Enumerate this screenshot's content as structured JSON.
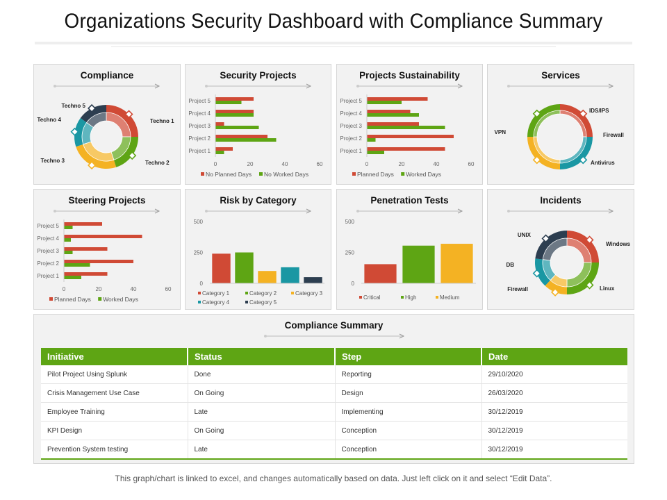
{
  "title": "Organizations Security Dashboard with Compliance Summary",
  "footer": "This graph/chart is linked to excel, and changes automatically based on data. Just left click on it and select “Edit Data”.",
  "colors": {
    "red": "#d04a35",
    "green": "#5ea514",
    "orange": "#f4b223",
    "teal": "#1a97a3",
    "navy": "#2d3e50"
  },
  "panels": {
    "compliance": "Compliance",
    "security_projects": "Security Projects",
    "projects_sustainability": "Projects Sustainability",
    "services": "Services",
    "steering_projects": "Steering Projects",
    "risk_by_category": "Risk by Category",
    "penetration_tests": "Penetration Tests",
    "incidents": "Incidents",
    "compliance_summary": "Compliance Summary"
  },
  "chart_data": [
    {
      "id": "compliance",
      "type": "pie",
      "title": "Compliance",
      "labels": [
        "Techno 1",
        "Techno 2",
        "Techno 3",
        "Techno 4",
        "Techno 5"
      ],
      "values": [
        25,
        20,
        25,
        15,
        15
      ],
      "colors": [
        "#d04a35",
        "#5ea514",
        "#f4b223",
        "#1a97a3",
        "#2d3e50"
      ]
    },
    {
      "id": "security_projects",
      "type": "bar",
      "title": "Security Projects",
      "categories": [
        "Project 1",
        "Project 2",
        "Project 3",
        "Project 4",
        "Project 5"
      ],
      "xticks": [
        "0",
        "20",
        "40",
        "60"
      ],
      "xlim": [
        0,
        60
      ],
      "series": [
        {
          "name": "No Planned Days",
          "color": "#d04a35",
          "values": [
            10,
            30,
            5,
            22,
            22
          ]
        },
        {
          "name": "No Worked Days",
          "color": "#5ea514",
          "values": [
            5,
            35,
            25,
            22,
            15
          ]
        }
      ]
    },
    {
      "id": "projects_sustainability",
      "type": "bar",
      "title": "Projects Sustainability",
      "categories": [
        "Project 1",
        "Project 2",
        "Project 3",
        "Project 4",
        "Project 5"
      ],
      "xticks": [
        "0",
        "20",
        "40",
        "60"
      ],
      "xlim": [
        0,
        60
      ],
      "series": [
        {
          "name": "Planned Days",
          "color": "#d04a35",
          "values": [
            45,
            50,
            30,
            25,
            35
          ]
        },
        {
          "name": "Worked Days",
          "color": "#5ea514",
          "values": [
            10,
            5,
            45,
            30,
            20
          ]
        }
      ]
    },
    {
      "id": "services",
      "type": "pie",
      "title": "Services",
      "labels": [
        "IDS/IPS",
        "Firewall",
        "Antivirus",
        "VPN"
      ],
      "values": [
        25,
        25,
        25,
        25
      ],
      "colors": [
        "#d04a35",
        "#1a97a3",
        "#f4b223",
        "#5ea514"
      ]
    },
    {
      "id": "steering_projects",
      "type": "bar",
      "title": "Steering Projects",
      "categories": [
        "Project 1",
        "Project 2",
        "Project 3",
        "Project 4",
        "Project 5"
      ],
      "xticks": [
        "0",
        "20",
        "40",
        "60"
      ],
      "xlim": [
        0,
        60
      ],
      "series": [
        {
          "name": "Planned Days",
          "color": "#d04a35",
          "values": [
            25,
            40,
            25,
            45,
            22
          ]
        },
        {
          "name": "Worked Days",
          "color": "#5ea514",
          "values": [
            10,
            15,
            5,
            4,
            5
          ]
        }
      ]
    },
    {
      "id": "risk_by_category",
      "type": "bar",
      "title": "Risk by Category",
      "categories": [
        "Category 1",
        "Category 2",
        "Category 3",
        "Category 4",
        "Category 5"
      ],
      "values": [
        240,
        250,
        100,
        130,
        50
      ],
      "colors": [
        "#d04a35",
        "#5ea514",
        "#f4b223",
        "#1a97a3",
        "#2d3e50"
      ],
      "yticks": [
        "0",
        "250",
        "500"
      ],
      "ylim": [
        0,
        500
      ]
    },
    {
      "id": "penetration_tests",
      "type": "bar",
      "title": "Penetration Tests",
      "categories": [
        "Critical",
        "High",
        "Medium"
      ],
      "values": [
        155,
        305,
        320
      ],
      "colors": [
        "#d04a35",
        "#5ea514",
        "#f4b223"
      ],
      "yticks": [
        "0",
        "250",
        "500"
      ],
      "ylim": [
        0,
        500
      ]
    },
    {
      "id": "incidents",
      "type": "pie",
      "title": "Incidents",
      "labels": [
        "Windows",
        "Linux",
        "Firewall",
        "DB",
        "UNIX"
      ],
      "values": [
        25,
        25,
        12,
        15,
        23
      ],
      "colors": [
        "#d04a35",
        "#5ea514",
        "#f4b223",
        "#1a97a3",
        "#2d3e50"
      ]
    }
  ],
  "summary": {
    "headers": [
      "Initiative",
      "Status",
      "Step",
      "Date"
    ],
    "rows": [
      [
        "Pilot Project Using Splunk",
        "Done",
        "Reporting",
        "29/10/2020"
      ],
      [
        "Crisis Management Use Case",
        "On Going",
        "Design",
        "26/03/2020"
      ],
      [
        "Employee Training",
        "Late",
        "Implementing",
        "30/12/2019"
      ],
      [
        "KPI Design",
        "On Going",
        "Conception",
        "30/12/2019"
      ],
      [
        "Prevention System testing",
        "Late",
        "Conception",
        "30/12/2019"
      ]
    ]
  }
}
